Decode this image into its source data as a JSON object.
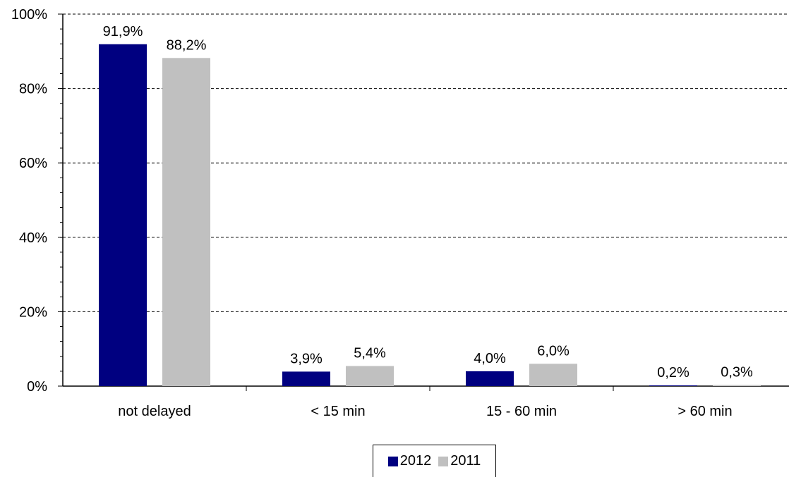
{
  "chart_data": {
    "type": "bar",
    "categories": [
      "not delayed",
      "< 15 min",
      "15 - 60 min",
      "> 60 min"
    ],
    "series": [
      {
        "name": "2012",
        "color": "#000080",
        "values": [
          91.9,
          3.9,
          4.0,
          0.2
        ],
        "labels": [
          "91,9%",
          "3,9%",
          "4,0%",
          "0,2%"
        ]
      },
      {
        "name": "2011",
        "color": "#c0c0c0",
        "values": [
          88.2,
          5.4,
          6.0,
          0.3
        ],
        "labels": [
          "88,2%",
          "5,4%",
          "6,0%",
          "0,3%"
        ]
      }
    ],
    "ylim": [
      0,
      100
    ],
    "yticks": [
      0,
      20,
      40,
      60,
      80,
      100
    ],
    "ytick_labels": [
      "0%",
      "20%",
      "40%",
      "60%",
      "80%",
      "100%"
    ],
    "grid": "dashed horizontal",
    "legend_position": "bottom-center"
  }
}
